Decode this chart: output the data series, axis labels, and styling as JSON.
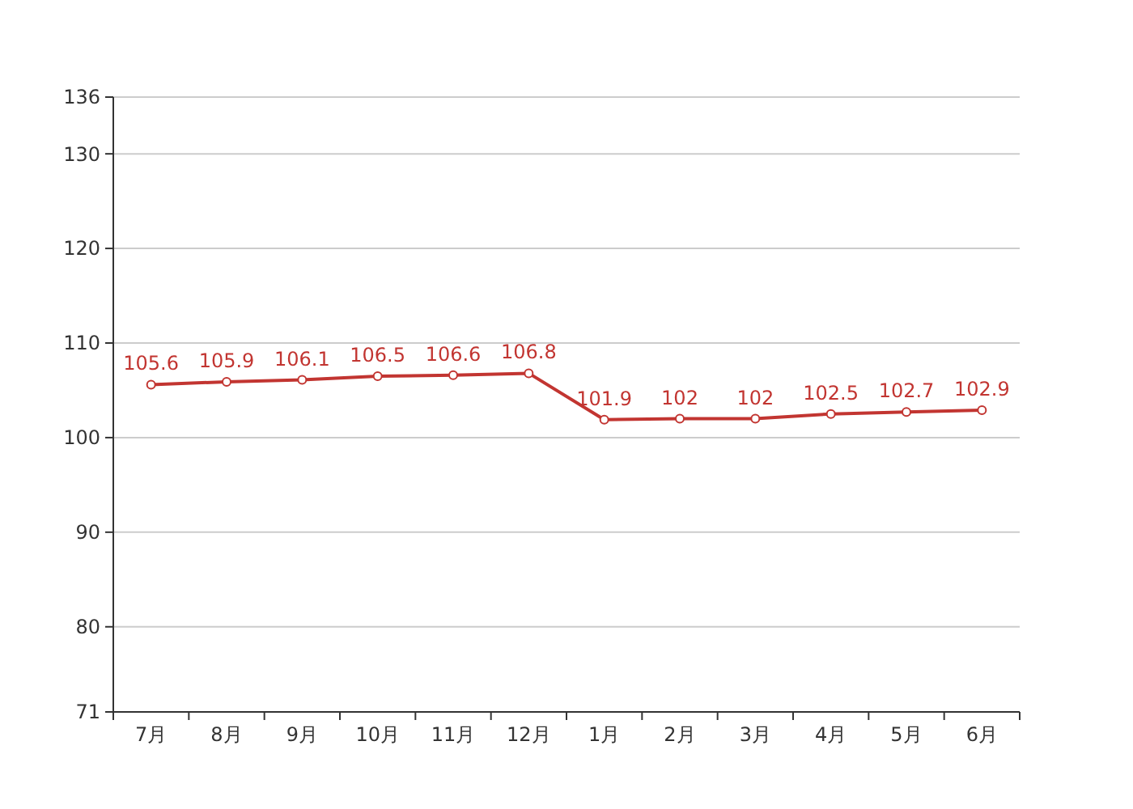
{
  "chart_data": {
    "type": "line",
    "categories": [
      "7月",
      "8月",
      "9月",
      "10月",
      "11月",
      "12月",
      "1月",
      "2月",
      "3月",
      "4月",
      "5月",
      "6月"
    ],
    "series": [
      {
        "color": "#c23531",
        "values": [
          105.6,
          105.9,
          106.1,
          106.5,
          106.6,
          106.8,
          101.9,
          102,
          102,
          102.5,
          102.7,
          102.9
        ]
      }
    ],
    "ylim": [
      71,
      136
    ],
    "yticks": [
      71,
      80,
      90,
      100,
      110,
      120,
      130,
      136
    ],
    "grid": "y",
    "marker": "circle",
    "line_style": "solid",
    "data_labels": true
  }
}
